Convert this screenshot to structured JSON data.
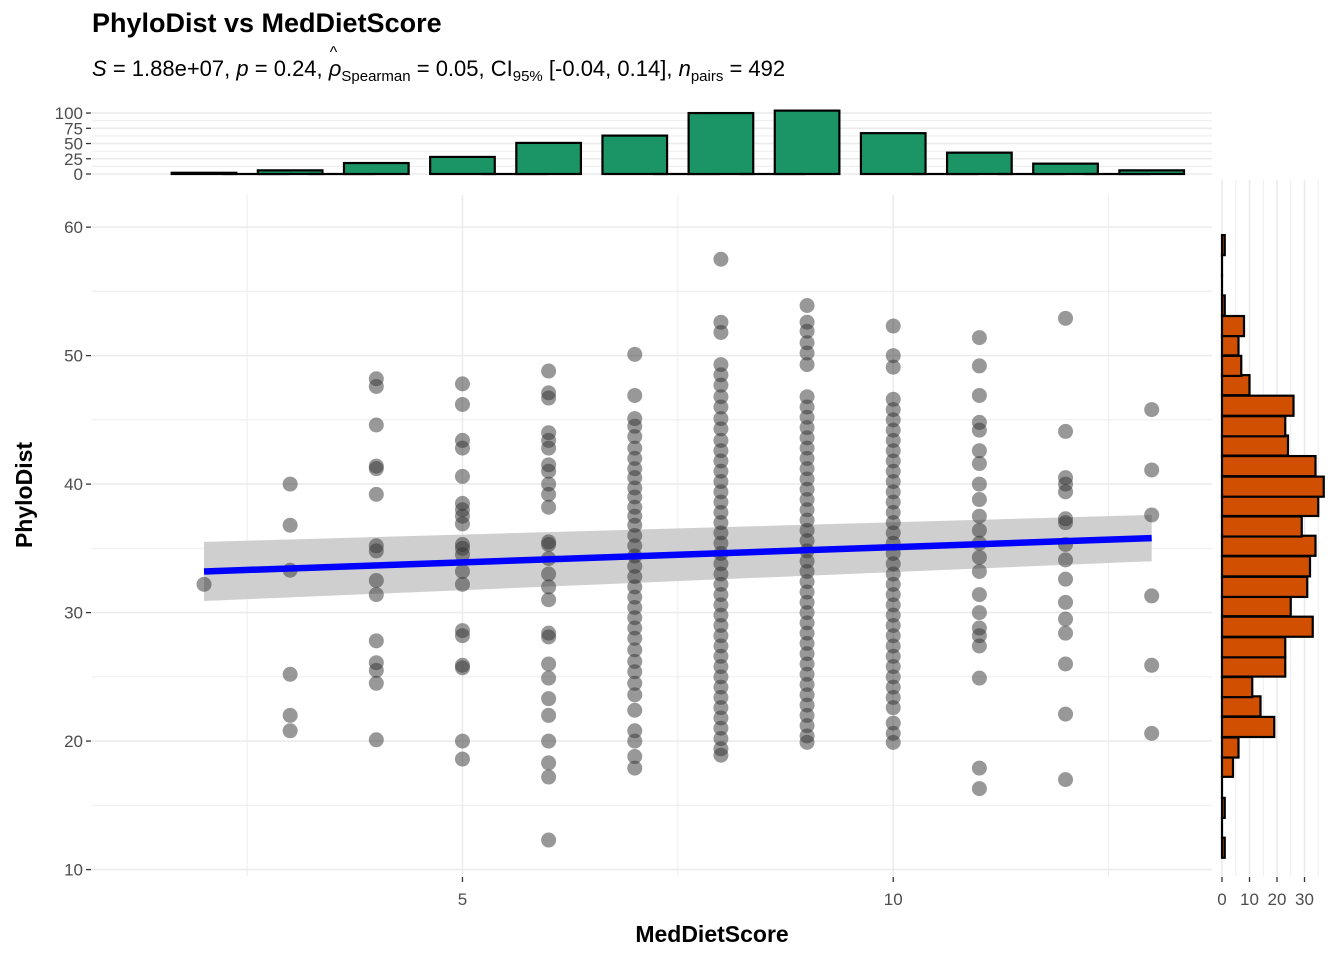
{
  "chart_data": {
    "type": "scatter",
    "title": "PhyloDist vs MedDietScore",
    "subtitle": {
      "S_label": "S",
      "S_value": "= 1.88e+07,",
      "p_label": "p",
      "p_value": "= 0.24,",
      "rho_symbol": "ρ",
      "rho_hat": "^",
      "rho_sub": "Spearman",
      "rho_value": "= 0.05,",
      "ci_label": "CI",
      "ci_sub": "95%",
      "ci_value": "[-0.04, 0.14],",
      "n_label": "n",
      "n_sub": "pairs",
      "n_value": "= 492"
    },
    "xlabel": "MedDietScore",
    "ylabel": "PhyloDist",
    "xlim": [
      0.7,
      13.7
    ],
    "ylim": [
      9.5,
      62.5
    ],
    "x_ticks": [
      5,
      10
    ],
    "y_ticks": [
      10,
      20,
      30,
      40,
      50,
      60
    ],
    "grid": true,
    "point_color": "#7f7f7f",
    "line_color": "#0000ff",
    "ribbon_color": "#cccccc",
    "top_hist_color": "#1b9466",
    "right_hist_color": "#d04f00",
    "regression": {
      "x": [
        2,
        13
      ],
      "y": [
        33.2,
        35.8
      ],
      "ci_lower": [
        30.9,
        34.0
      ],
      "ci_upper": [
        35.5,
        37.6
      ]
    },
    "points": [
      {
        "x": 2,
        "y": [
          32.2
        ]
      },
      {
        "x": 3,
        "y": [
          40.0,
          36.8,
          33.3,
          25.2,
          22.0,
          20.8
        ]
      },
      {
        "x": 4,
        "y": [
          48.2,
          47.6,
          44.6,
          41.4,
          41.2,
          39.2,
          35.2,
          34.8,
          32.5,
          31.4,
          27.8,
          26.1,
          25.5,
          24.5,
          20.1
        ]
      },
      {
        "x": 5,
        "y": [
          47.8,
          46.2,
          43.4,
          42.8,
          40.6,
          38.5,
          38.0,
          37.5,
          36.9,
          35.3,
          35.0,
          34.5,
          33.2,
          32.2,
          28.6,
          28.2,
          25.9,
          25.7,
          20.0,
          18.6
        ]
      },
      {
        "x": 6,
        "y": [
          48.8,
          47.1,
          46.7,
          44.0,
          43.4,
          42.8,
          41.5,
          41.0,
          40.0,
          39.2,
          38.2,
          35.5,
          35.3,
          34.2,
          33.0,
          32.0,
          31.0,
          28.4,
          28.1,
          26.0,
          24.9,
          23.3,
          22.0,
          20.0,
          18.3,
          17.2,
          12.3
        ]
      },
      {
        "x": 7,
        "y": [
          50.1,
          46.9,
          45.1,
          44.5,
          43.7,
          42.8,
          42.0,
          41.2,
          40.5,
          39.7,
          39.0,
          38.2,
          37.5,
          36.8,
          36.0,
          35.2,
          34.4,
          33.6,
          32.8,
          32.0,
          31.2,
          30.4,
          29.6,
          28.8,
          28.0,
          27.1,
          26.2,
          25.4,
          24.5,
          23.6,
          22.4,
          20.8,
          20.0,
          18.8,
          17.9
        ]
      },
      {
        "x": 8,
        "y": [
          57.5,
          52.6,
          51.8,
          49.3,
          48.5,
          47.7,
          46.8,
          46.0,
          45.1,
          44.3,
          43.4,
          42.6,
          41.8,
          41.0,
          40.2,
          39.4,
          38.6,
          37.8,
          37.0,
          36.2,
          35.4,
          34.6,
          33.8,
          33.0,
          32.2,
          31.4,
          30.6,
          29.8,
          29.0,
          28.2,
          27.4,
          26.6,
          25.8,
          25.0,
          24.2,
          23.4,
          22.6,
          21.8,
          21.0,
          20.2,
          19.4,
          18.9
        ]
      },
      {
        "x": 9,
        "y": [
          53.9,
          52.6,
          51.9,
          51.0,
          50.2,
          49.3,
          46.8,
          46.0,
          45.2,
          44.4,
          43.6,
          42.8,
          42.0,
          41.2,
          40.4,
          39.6,
          38.8,
          38.0,
          37.2,
          36.4,
          35.6,
          34.8,
          34.0,
          33.2,
          32.4,
          31.6,
          30.8,
          30.0,
          29.2,
          28.4,
          27.6,
          26.8,
          26.0,
          25.2,
          24.4,
          23.6,
          22.8,
          22.0,
          21.2,
          20.4,
          19.9
        ]
      },
      {
        "x": 10,
        "y": [
          52.3,
          50.0,
          49.1,
          46.6,
          45.8,
          45.0,
          44.2,
          43.4,
          42.6,
          41.8,
          41.0,
          40.2,
          39.4,
          38.6,
          37.8,
          37.0,
          36.2,
          35.4,
          34.6,
          33.8,
          33.0,
          32.2,
          31.4,
          30.6,
          29.8,
          29.0,
          28.2,
          27.4,
          26.6,
          25.8,
          25.0,
          24.2,
          23.4,
          22.6,
          21.4,
          20.6,
          19.9
        ]
      },
      {
        "x": 11,
        "y": [
          51.4,
          49.2,
          46.9,
          44.8,
          44.2,
          42.6,
          41.6,
          40.0,
          38.8,
          37.5,
          36.4,
          35.4,
          34.3,
          33.2,
          31.4,
          30.0,
          28.8,
          28.2,
          27.4,
          24.9,
          17.9,
          16.3
        ]
      },
      {
        "x": 12,
        "y": [
          52.9,
          44.1,
          40.5,
          40.0,
          39.4,
          37.3,
          37.0,
          35.3,
          34.1,
          32.6,
          30.8,
          29.5,
          28.4,
          26.0,
          22.1,
          17.0
        ]
      },
      {
        "x": 13,
        "y": [
          45.8,
          41.1,
          37.6,
          31.3,
          25.9,
          20.6
        ]
      }
    ],
    "top_histogram": {
      "x_ticks": [
        0,
        25,
        50,
        75,
        100
      ],
      "ylim": [
        0,
        105
      ],
      "bins": [
        {
          "x": 2,
          "count": 2
        },
        {
          "x": 2.6,
          "count": 0
        },
        {
          "x": 3,
          "count": 6
        },
        {
          "x": 3.6,
          "count": 0
        },
        {
          "x": 4,
          "count": 18
        },
        {
          "x": 5,
          "count": 28
        },
        {
          "x": 5.6,
          "count": 0
        },
        {
          "x": 6,
          "count": 51
        },
        {
          "x": 7,
          "count": 63
        },
        {
          "x": 7.6,
          "count": 0
        },
        {
          "x": 8,
          "count": 100
        },
        {
          "x": 8.6,
          "count": 0
        },
        {
          "x": 9,
          "count": 104
        },
        {
          "x": 10,
          "count": 67
        },
        {
          "x": 10.6,
          "count": 0
        },
        {
          "x": 11,
          "count": 35
        },
        {
          "x": 11.6,
          "count": 0
        },
        {
          "x": 12,
          "count": 17
        },
        {
          "x": 12.6,
          "count": 0
        },
        {
          "x": 13,
          "count": 6
        }
      ],
      "bin_width": 0.75
    },
    "right_histogram": {
      "x_ticks": [
        0,
        10,
        20,
        30
      ],
      "xlim": [
        0,
        40
      ],
      "bin_width": 1.5625,
      "bins": [
        {
          "y": 11.7,
          "count": 1
        },
        {
          "y": 13.3,
          "count": 0
        },
        {
          "y": 14.8,
          "count": 1
        },
        {
          "y": 16.4,
          "count": 0
        },
        {
          "y": 18.0,
          "count": 4
        },
        {
          "y": 19.5,
          "count": 6
        },
        {
          "y": 21.1,
          "count": 19
        },
        {
          "y": 22.7,
          "count": 14
        },
        {
          "y": 24.2,
          "count": 11
        },
        {
          "y": 25.8,
          "count": 23
        },
        {
          "y": 27.3,
          "count": 23
        },
        {
          "y": 28.9,
          "count": 33
        },
        {
          "y": 30.5,
          "count": 25
        },
        {
          "y": 32.0,
          "count": 31
        },
        {
          "y": 33.6,
          "count": 32
        },
        {
          "y": 35.2,
          "count": 34
        },
        {
          "y": 36.7,
          "count": 29
        },
        {
          "y": 38.3,
          "count": 35
        },
        {
          "y": 39.8,
          "count": 37
        },
        {
          "y": 41.4,
          "count": 34
        },
        {
          "y": 43.0,
          "count": 24
        },
        {
          "y": 44.5,
          "count": 23
        },
        {
          "y": 46.1,
          "count": 26
        },
        {
          "y": 47.7,
          "count": 10
        },
        {
          "y": 49.2,
          "count": 7
        },
        {
          "y": 50.8,
          "count": 6
        },
        {
          "y": 52.3,
          "count": 8
        },
        {
          "y": 53.9,
          "count": 1
        },
        {
          "y": 55.5,
          "count": 0
        },
        {
          "y": 57.0,
          "count": 0
        },
        {
          "y": 58.6,
          "count": 1
        }
      ]
    }
  }
}
